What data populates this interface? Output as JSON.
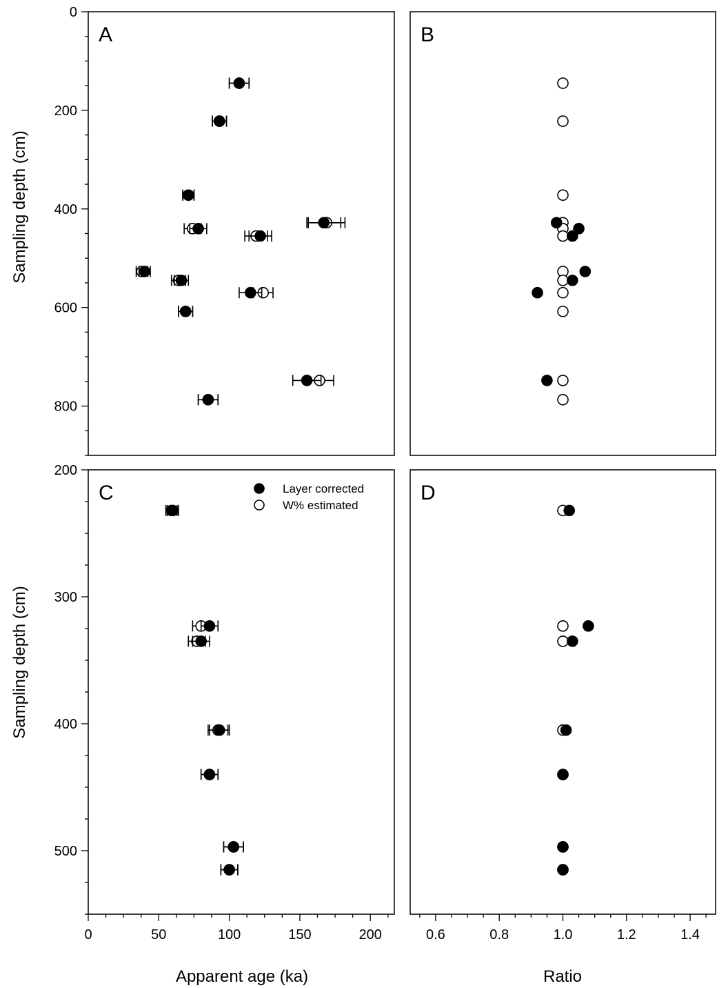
{
  "figure": {
    "x_axis_title_left": "Apparent age (ka)",
    "x_axis_title_right": "Ratio",
    "y_axis_title": "Sampling depth (cm)"
  },
  "legend": {
    "filled_label": "Layer corrected",
    "open_label": "W% estimated"
  },
  "colors": {
    "axis": "#000000",
    "filled_marker": "#000000",
    "open_marker": "#ffffff"
  },
  "chart_data": [
    {
      "panel": "A",
      "type": "scatter",
      "xlabel": "Apparent age (ka)",
      "ylabel": "Sampling depth (cm)",
      "xlim": [
        0,
        217
      ],
      "ylim": [
        0,
        900
      ],
      "y_inverted": true,
      "yticks": [
        0,
        200,
        400,
        600,
        800
      ],
      "series": [
        {
          "name": "Layer corrected",
          "marker": "filled",
          "points": [
            {
              "depth": 145,
              "value": 107,
              "err": 7
            },
            {
              "depth": 222,
              "value": 93,
              "err": 5
            },
            {
              "depth": 372,
              "value": 71,
              "err": 4
            },
            {
              "depth": 428,
              "value": 167,
              "err": 12
            },
            {
              "depth": 440,
              "value": 78,
              "err": 6
            },
            {
              "depth": 455,
              "value": 122,
              "err": 8
            },
            {
              "depth": 527,
              "value": 40,
              "err": 4
            },
            {
              "depth": 545,
              "value": 66,
              "err": 5
            },
            {
              "depth": 570,
              "value": 115,
              "err": 8
            },
            {
              "depth": 608,
              "value": 69,
              "err": 5
            },
            {
              "depth": 748,
              "value": 155,
              "err": 10
            },
            {
              "depth": 787,
              "value": 85,
              "err": 7
            }
          ]
        },
        {
          "name": "W% estimated",
          "marker": "open",
          "points": [
            {
              "depth": 145,
              "value": 107,
              "err": 7
            },
            {
              "depth": 222,
              "value": 93,
              "err": 5
            },
            {
              "depth": 372,
              "value": 71,
              "err": 4
            },
            {
              "depth": 428,
              "value": 169,
              "err": 13
            },
            {
              "depth": 440,
              "value": 74,
              "err": 6
            },
            {
              "depth": 455,
              "value": 119,
              "err": 8
            },
            {
              "depth": 527,
              "value": 38,
              "err": 4
            },
            {
              "depth": 545,
              "value": 64,
              "err": 5
            },
            {
              "depth": 570,
              "value": 124,
              "err": 7
            },
            {
              "depth": 608,
              "value": 69,
              "err": 5
            },
            {
              "depth": 748,
              "value": 164,
              "err": 10
            },
            {
              "depth": 787,
              "value": 85,
              "err": 7
            }
          ]
        }
      ]
    },
    {
      "panel": "B",
      "type": "scatter",
      "xlabel": "Ratio",
      "ylim": [
        0,
        900
      ],
      "xlim": [
        0.52,
        1.48
      ],
      "y_inverted": true,
      "series": [
        {
          "name": "Layer corrected",
          "marker": "filled",
          "points": [
            {
              "depth": 428,
              "value": 0.98
            },
            {
              "depth": 440,
              "value": 1.05
            },
            {
              "depth": 455,
              "value": 1.03
            },
            {
              "depth": 527,
              "value": 1.07
            },
            {
              "depth": 545,
              "value": 1.03
            },
            {
              "depth": 570,
              "value": 0.92
            },
            {
              "depth": 748,
              "value": 0.95
            }
          ]
        },
        {
          "name": "W% estimated",
          "marker": "open",
          "points": [
            {
              "depth": 145,
              "value": 1.0
            },
            {
              "depth": 222,
              "value": 1.0
            },
            {
              "depth": 372,
              "value": 1.0
            },
            {
              "depth": 428,
              "value": 1.0
            },
            {
              "depth": 440,
              "value": 1.0
            },
            {
              "depth": 455,
              "value": 1.0
            },
            {
              "depth": 527,
              "value": 1.0
            },
            {
              "depth": 545,
              "value": 1.0
            },
            {
              "depth": 570,
              "value": 1.0
            },
            {
              "depth": 608,
              "value": 1.0
            },
            {
              "depth": 748,
              "value": 1.0
            },
            {
              "depth": 787,
              "value": 1.0
            }
          ]
        }
      ]
    },
    {
      "panel": "C",
      "type": "scatter",
      "xlabel": "Apparent age (ka)",
      "ylabel": "Sampling depth (cm)",
      "xlim": [
        0,
        217
      ],
      "ylim": [
        200,
        550
      ],
      "y_inverted": true,
      "xticks": [
        0,
        50,
        100,
        150,
        200
      ],
      "yticks": [
        200,
        300,
        400,
        500
      ],
      "series": [
        {
          "name": "Layer corrected",
          "marker": "filled",
          "points": [
            {
              "depth": 232,
              "value": 60,
              "err": 4
            },
            {
              "depth": 323,
              "value": 86,
              "err": 6
            },
            {
              "depth": 335,
              "value": 80,
              "err": 6
            },
            {
              "depth": 405,
              "value": 93,
              "err": 7
            },
            {
              "depth": 440,
              "value": 86,
              "err": 6
            },
            {
              "depth": 497,
              "value": 103,
              "err": 7
            },
            {
              "depth": 515,
              "value": 100,
              "err": 6
            }
          ]
        },
        {
          "name": "W% estimated",
          "marker": "open",
          "points": [
            {
              "depth": 232,
              "value": 59,
              "err": 4
            },
            {
              "depth": 323,
              "value": 80,
              "err": 6
            },
            {
              "depth": 335,
              "value": 77,
              "err": 6
            },
            {
              "depth": 405,
              "value": 92,
              "err": 7
            },
            {
              "depth": 440,
              "value": 86,
              "err": 6
            },
            {
              "depth": 497,
              "value": 103,
              "err": 7
            },
            {
              "depth": 515,
              "value": 100,
              "err": 6
            }
          ]
        }
      ]
    },
    {
      "panel": "D",
      "type": "scatter",
      "xlabel": "Ratio",
      "xlim": [
        0.52,
        1.48
      ],
      "ylim": [
        200,
        550
      ],
      "y_inverted": true,
      "xticks": [
        0.6,
        0.8,
        1.0,
        1.2,
        1.4
      ],
      "xtick_labels": [
        "0.6",
        "0.8",
        "1.0",
        "1.2",
        "1.4"
      ],
      "series": [
        {
          "name": "Layer corrected",
          "marker": "filled",
          "points": [
            {
              "depth": 232,
              "value": 1.02
            },
            {
              "depth": 323,
              "value": 1.08
            },
            {
              "depth": 335,
              "value": 1.03
            },
            {
              "depth": 405,
              "value": 1.01
            },
            {
              "depth": 440,
              "value": 1.0
            },
            {
              "depth": 497,
              "value": 1.0
            },
            {
              "depth": 515,
              "value": 1.0
            }
          ]
        },
        {
          "name": "W% estimated",
          "marker": "open",
          "points": [
            {
              "depth": 232,
              "value": 1.0
            },
            {
              "depth": 323,
              "value": 1.0
            },
            {
              "depth": 335,
              "value": 1.0
            },
            {
              "depth": 405,
              "value": 1.0
            },
            {
              "depth": 440,
              "value": 1.0
            },
            {
              "depth": 497,
              "value": 1.0
            },
            {
              "depth": 515,
              "value": 1.0
            }
          ]
        }
      ]
    }
  ]
}
